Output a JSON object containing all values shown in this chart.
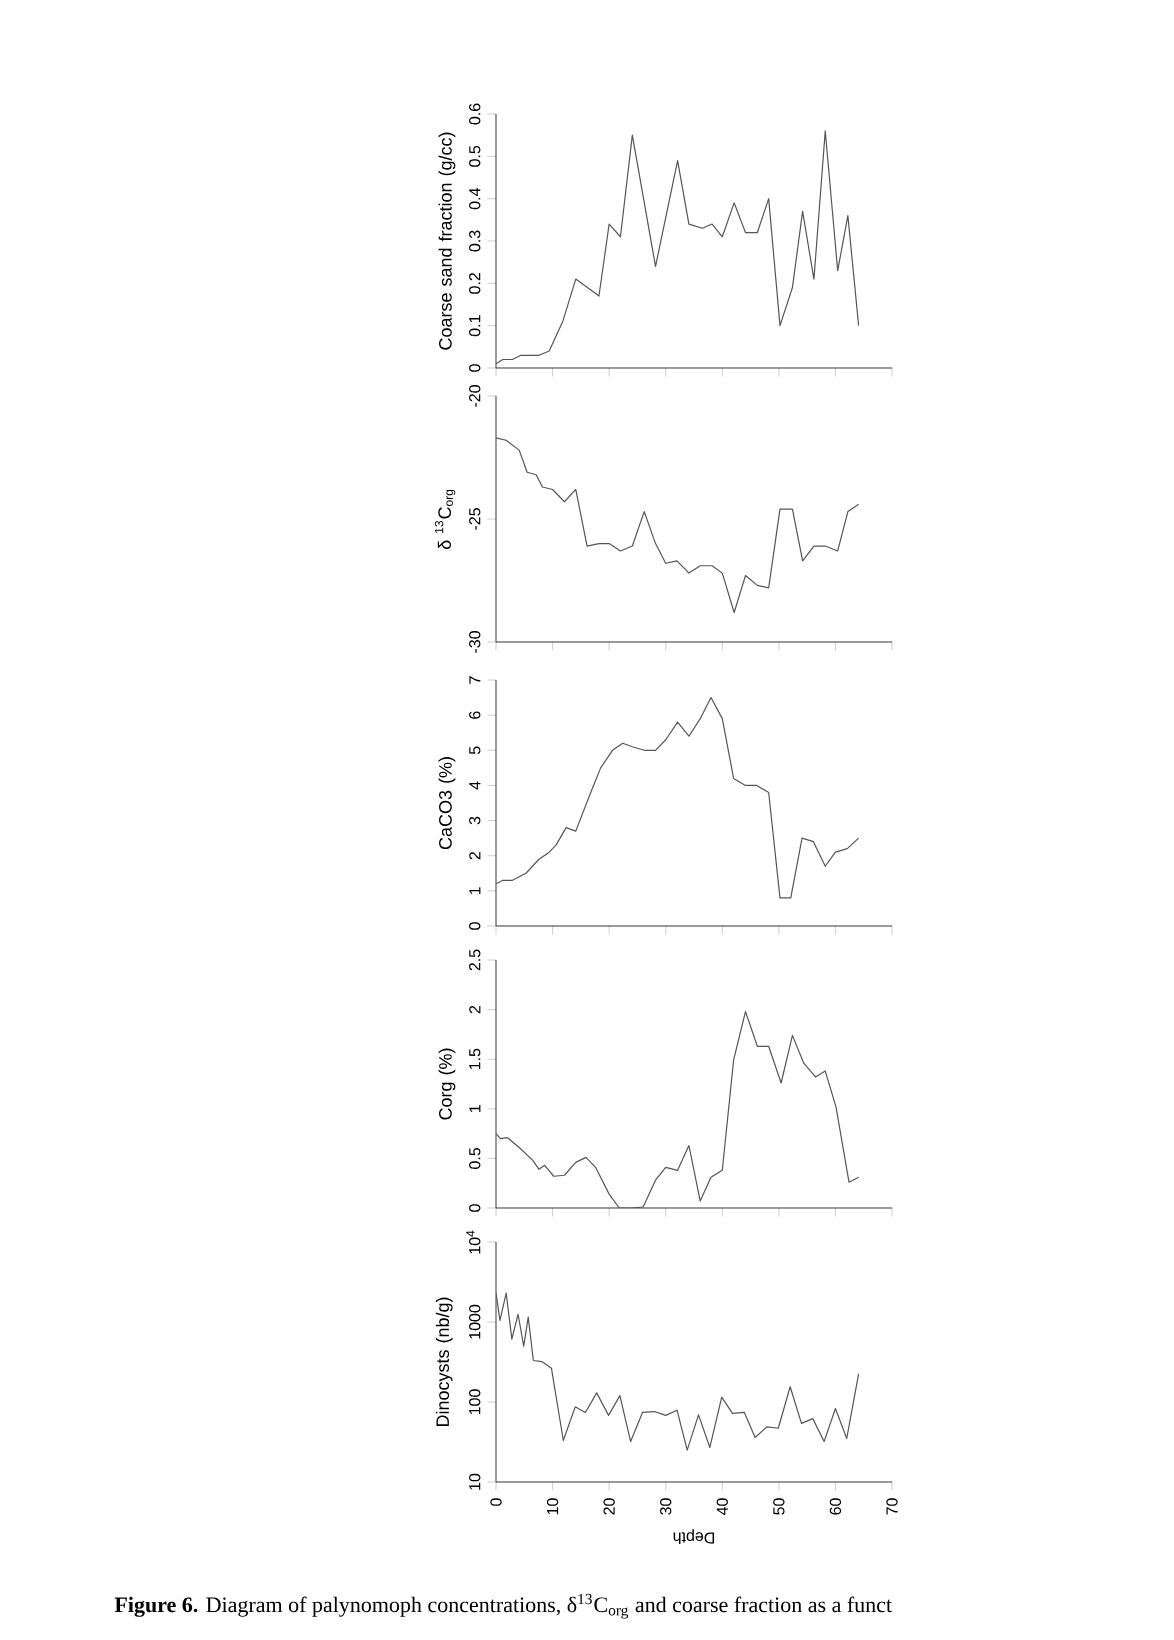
{
  "chart_data": [
    {
      "type": "line",
      "ylabel": "Coarse sand fraction (g/cc)",
      "color": "#555555",
      "xlim": [
        0,
        70
      ],
      "xticks": [
        0,
        10,
        20,
        30,
        40,
        50,
        60,
        70
      ],
      "ylim": [
        0,
        0.6
      ],
      "yticks": [
        0,
        0.1,
        0.2,
        0.3,
        0.4,
        0.5,
        0.6
      ],
      "tick_labels": "y",
      "x": [
        0,
        1.2,
        2.9,
        4.4,
        5.9,
        7.6,
        9.4,
        11.8,
        14.1,
        18.2,
        20,
        22,
        24.1,
        28.2,
        32.1,
        34.1,
        36.5,
        38.2,
        40,
        42.1,
        44.1,
        46.2,
        48.2,
        50.2,
        52.4,
        54.2,
        56.2,
        58.2,
        60.4,
        62.2,
        64.1
      ],
      "values": [
        0.01,
        0.02,
        0.02,
        0.03,
        0.03,
        0.03,
        0.04,
        0.11,
        0.21,
        0.17,
        0.34,
        0.31,
        0.55,
        0.24,
        0.49,
        0.34,
        0.33,
        0.34,
        0.31,
        0.39,
        0.32,
        0.32,
        0.4,
        0.1,
        0.19,
        0.37,
        0.21,
        0.56,
        0.23,
        0.36,
        0.1
      ]
    },
    {
      "type": "line",
      "ylabel": "δ $^{13}$C$_{org}$",
      "color": "#555555",
      "xlim": [
        0,
        70
      ],
      "xticks": [
        0,
        10,
        20,
        30,
        40,
        50,
        60,
        70
      ],
      "ylim": [
        -30,
        -20
      ],
      "yticks": [
        -30,
        -25,
        -20
      ],
      "tick_labels": "y",
      "x": [
        0,
        1.8,
        4.1,
        5.5,
        7.1,
        8.2,
        10,
        12.1,
        14.1,
        16.1,
        18.2,
        20,
        22,
        24.1,
        26.2,
        28.2,
        30,
        32,
        34.1,
        36.1,
        38.2,
        40,
        42.1,
        44.1,
        46.2,
        48.2,
        50.2,
        52.4,
        54.2,
        56.2,
        58.2,
        60.4,
        62.2,
        64.1
      ],
      "values": [
        -21.7,
        -21.8,
        -22.2,
        -23.1,
        -23.2,
        -23.7,
        -23.8,
        -24.3,
        -23.8,
        -26.1,
        -26,
        -26,
        -26.3,
        -26.1,
        -24.7,
        -26,
        -26.8,
        -26.7,
        -27.2,
        -26.9,
        -26.9,
        -27.2,
        -28.8,
        -27.3,
        -27.7,
        -27.8,
        -24.6,
        -24.6,
        -26.7,
        -26.1,
        -26.1,
        -26.3,
        -24.7,
        -24.4
      ]
    },
    {
      "type": "line",
      "ylabel": "CaCO3 (%)",
      "color": "#555555",
      "xlim": [
        0,
        70
      ],
      "xticks": [
        0,
        10,
        20,
        30,
        40,
        50,
        60,
        70
      ],
      "ylim": [
        0,
        7
      ],
      "yticks": [
        0,
        1,
        2,
        3,
        4,
        5,
        6,
        7
      ],
      "tick_labels": "y",
      "x": [
        0,
        1.2,
        2.9,
        5.3,
        7.6,
        9.4,
        10.6,
        12.4,
        14.1,
        16.5,
        18.5,
        20.6,
        22.4,
        24.1,
        26.2,
        28.2,
        30,
        32.1,
        34.1,
        36.1,
        38,
        40,
        42,
        44.1,
        46.1,
        48.2,
        50.2,
        52.1,
        54.1,
        56.1,
        58.2,
        60,
        62.1,
        64.1
      ],
      "values": [
        1.2,
        1.3,
        1.3,
        1.5,
        1.9,
        2.1,
        2.3,
        2.8,
        2.7,
        3.7,
        4.5,
        5,
        5.2,
        5.1,
        5,
        5,
        5.3,
        5.8,
        5.4,
        5.9,
        6.5,
        5.9,
        4.2,
        4,
        4,
        3.8,
        0.8,
        0.8,
        2.5,
        2.4,
        1.7,
        2.1,
        2.2,
        2.5
      ]
    },
    {
      "type": "line",
      "ylabel": "Corg (%)",
      "color": "#555555",
      "xlim": [
        0,
        70
      ],
      "xticks": [
        0,
        10,
        20,
        30,
        40,
        50,
        60,
        70
      ],
      "ylim": [
        0,
        2.5
      ],
      "yticks": [
        0,
        0.5,
        1,
        1.5,
        2,
        2.5
      ],
      "tick_labels": "y",
      "x": [
        0,
        0.8,
        2,
        4.1,
        6.5,
        7.6,
        8.6,
        10.2,
        12.1,
        14.1,
        15.9,
        17.6,
        20,
        21.8,
        23.9,
        26,
        28.2,
        30,
        32.1,
        34.1,
        36.1,
        38,
        40,
        42,
        44.1,
        46.2,
        48.2,
        50.4,
        52.4,
        54.4,
        56.5,
        58.2,
        60.1,
        62.4,
        64.1
      ],
      "values": [
        0.75,
        0.7,
        0.71,
        0.61,
        0.48,
        0.39,
        0.43,
        0.32,
        0.33,
        0.46,
        0.51,
        0.41,
        0.14,
        0,
        0,
        0.01,
        0.28,
        0.41,
        0.38,
        0.63,
        0.07,
        0.31,
        0.38,
        1.49,
        1.98,
        1.63,
        1.63,
        1.26,
        1.74,
        1.46,
        1.32,
        1.38,
        1.02,
        0.26,
        0.31
      ]
    },
    {
      "type": "line",
      "ylabel": "Dinocysts (nb/g)",
      "xlabel": "Depth",
      "color": "#555555",
      "log": true,
      "xlim": [
        0,
        70
      ],
      "xticks": [
        0,
        10,
        20,
        30,
        40,
        50,
        60,
        70
      ],
      "ylim": [
        10,
        10000
      ],
      "yticks": [
        10,
        100,
        1000,
        {
          "value": 10000,
          "label": "10$^{4}$"
        }
      ],
      "x": [
        0,
        0.7,
        1.8,
        2.8,
        3.9,
        4.9,
        5.7,
        6.6,
        8.1,
        9.8,
        11.9,
        14,
        15.8,
        17.8,
        19.9,
        21.9,
        23.8,
        25.9,
        28,
        30,
        32,
        33.8,
        35.8,
        37.8,
        39.9,
        41.8,
        43.9,
        45.8,
        47.9,
        49.9,
        52,
        54,
        56,
        58,
        60,
        62,
        64.1
      ],
      "values": [
        2300,
        1050,
        2300,
        610,
        1250,
        500,
        1150,
        330,
        320,
        265,
        33,
        87,
        74,
        130,
        68,
        120,
        32,
        74,
        76,
        68,
        79,
        25,
        69,
        27,
        115,
        72,
        74,
        36,
        49,
        47,
        155,
        54,
        62,
        32,
        83,
        35,
        225
      ],
      "annotations": [
        "**Figure 6.** Diagram of palynomoph concentrations, δ$^{13}$C$_{org}$ and coarse fraction as a funct"
      ]
    }
  ]
}
